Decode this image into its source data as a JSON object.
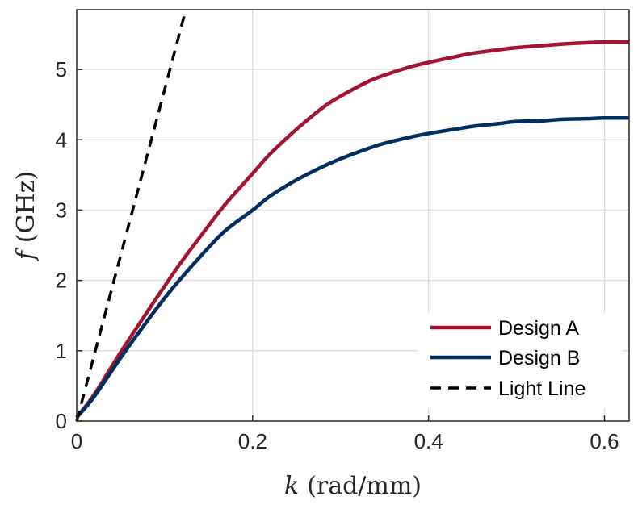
{
  "chart_data": {
    "type": "line",
    "xlabel_var": "k",
    "xlabel_unit": "(rad/mm)",
    "ylabel_var": "f",
    "ylabel_unit": "(GHz)",
    "xlim": [
      0,
      0.628
    ],
    "ylim": [
      0,
      5.85
    ],
    "xticks": [
      0,
      0.2,
      0.4,
      0.6
    ],
    "xtick_labels": [
      "0",
      "0.2",
      "0.4",
      "0.6"
    ],
    "yticks": [
      0,
      1,
      2,
      3,
      4,
      5
    ],
    "ytick_labels": [
      "0",
      "1",
      "2",
      "3",
      "4",
      "5"
    ],
    "grid": true,
    "legend_position": "bottom-right",
    "series": [
      {
        "name": "Design A",
        "color": "#a2142f",
        "style": "solid",
        "x": [
          0,
          0.02,
          0.05,
          0.08,
          0.1,
          0.12,
          0.15,
          0.17,
          0.2,
          0.22,
          0.25,
          0.28,
          0.3,
          0.33,
          0.35,
          0.38,
          0.4,
          0.43,
          0.45,
          0.48,
          0.5,
          0.53,
          0.55,
          0.58,
          0.6,
          0.628
        ],
        "y": [
          0.05,
          0.38,
          0.98,
          1.55,
          1.92,
          2.28,
          2.78,
          3.1,
          3.52,
          3.8,
          4.15,
          4.46,
          4.62,
          4.82,
          4.92,
          5.04,
          5.1,
          5.18,
          5.23,
          5.28,
          5.31,
          5.34,
          5.36,
          5.38,
          5.39,
          5.39
        ]
      },
      {
        "name": "Design B",
        "color": "#00305f",
        "style": "solid",
        "x": [
          0,
          0.02,
          0.05,
          0.08,
          0.1,
          0.12,
          0.15,
          0.17,
          0.2,
          0.22,
          0.25,
          0.28,
          0.3,
          0.33,
          0.35,
          0.38,
          0.4,
          0.43,
          0.45,
          0.48,
          0.5,
          0.53,
          0.55,
          0.58,
          0.6,
          0.628
        ],
        "y": [
          0.05,
          0.35,
          0.9,
          1.42,
          1.75,
          2.05,
          2.47,
          2.72,
          3.0,
          3.2,
          3.43,
          3.62,
          3.73,
          3.87,
          3.95,
          4.04,
          4.09,
          4.15,
          4.19,
          4.23,
          4.26,
          4.27,
          4.29,
          4.3,
          4.31,
          4.31
        ]
      },
      {
        "name": "Light Line",
        "color": "#000000",
        "style": "dashed",
        "x": [
          0,
          0.124
        ],
        "y": [
          0,
          5.85
        ]
      }
    ]
  }
}
